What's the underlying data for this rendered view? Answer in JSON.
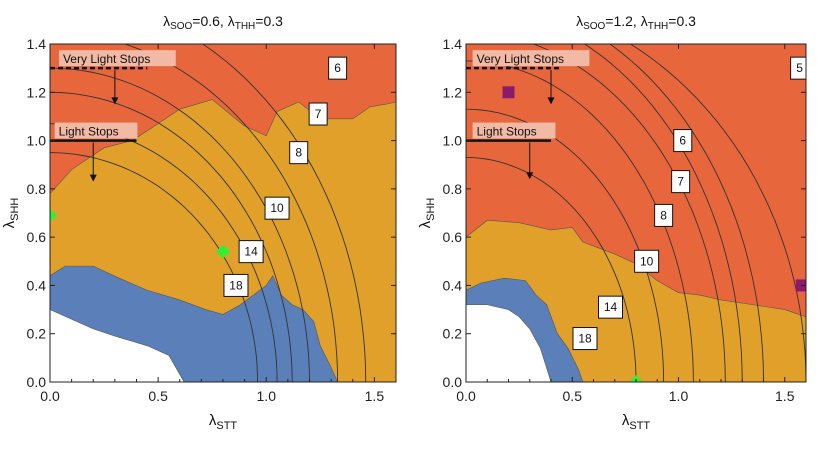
{
  "colors": {
    "red_region": "#e8663c",
    "orange_region": "#e0a02a",
    "blue_region": "#5b7fb8",
    "white_region": "#ffffff",
    "contour": "#333333",
    "label_bg": "#f2b9a4",
    "green_marker": "#33ee33",
    "purple_marker": "#8b1a6b"
  },
  "chart_data": [
    {
      "type": "contour",
      "title": {
        "lambda": "λ",
        "sub1": "SOO",
        "eq1": "=0.6, ",
        "lambda2": "λ",
        "sub2": "THH",
        "eq2": "=0.3"
      },
      "xlabel": {
        "main": "λ",
        "sub": "STT"
      },
      "ylabel": {
        "main": "λ",
        "sub": "SHH"
      },
      "xlim": [
        0,
        1.6
      ],
      "ylim": [
        0,
        1.4
      ],
      "xticks": [
        "0.0",
        "0.5",
        "1.0",
        "1.5"
      ],
      "yticks": [
        "0.0",
        "0.2",
        "0.4",
        "0.6",
        "0.8",
        "1.0",
        "1.2",
        "1.4"
      ],
      "regions": {
        "red_boundary": [
          [
            0,
            0.78
          ],
          [
            0.1,
            0.88
          ],
          [
            0.25,
            0.97
          ],
          [
            0.38,
            1.0
          ],
          [
            0.5,
            1.07
          ],
          [
            0.6,
            1.13
          ],
          [
            0.75,
            1.17
          ],
          [
            0.9,
            1.06
          ],
          [
            1.0,
            1.02
          ],
          [
            1.05,
            1.12
          ],
          [
            1.15,
            1.16
          ],
          [
            1.25,
            1.09
          ],
          [
            1.4,
            1.09
          ],
          [
            1.48,
            1.14
          ],
          [
            1.55,
            1.15
          ],
          [
            1.6,
            1.16
          ]
        ],
        "blue_boundary": [
          [
            0,
            0.44
          ],
          [
            0.07,
            0.48
          ],
          [
            0.2,
            0.48
          ],
          [
            0.32,
            0.43
          ],
          [
            0.45,
            0.38
          ],
          [
            0.6,
            0.34
          ],
          [
            0.72,
            0.3
          ],
          [
            0.8,
            0.28
          ],
          [
            0.88,
            0.32
          ],
          [
            0.94,
            0.36
          ],
          [
            1.0,
            0.4
          ],
          [
            1.03,
            0.44
          ],
          [
            1.07,
            0.36
          ],
          [
            1.12,
            0.32
          ],
          [
            1.17,
            0.3
          ],
          [
            1.22,
            0.25
          ],
          [
            1.25,
            0.15
          ],
          [
            1.3,
            0.06
          ],
          [
            1.33,
            0
          ]
        ],
        "white_boundary": [
          [
            0,
            0.3
          ],
          [
            0.1,
            0.26
          ],
          [
            0.2,
            0.22
          ],
          [
            0.3,
            0.19
          ],
          [
            0.45,
            0.15
          ],
          [
            0.55,
            0.11
          ],
          [
            0.62,
            0
          ]
        ]
      },
      "contour_lines": [
        {
          "level": "6",
          "x0": 1.46,
          "y0": 1.6,
          "label_at": [
            1.33,
            1.3
          ]
        },
        {
          "level": "7",
          "x0": 1.33,
          "y0": 1.45,
          "label_at": [
            1.24,
            1.11
          ]
        },
        {
          "level": "8",
          "x0": 1.2,
          "y0": 1.3,
          "label_at": [
            1.15,
            0.95
          ]
        },
        {
          "level": "10",
          "x0": 1.12,
          "y0": 1.2,
          "label_at": [
            1.05,
            0.72
          ]
        },
        {
          "level": "14",
          "x0": 1.05,
          "y0": 1.07,
          "label_at": [
            0.93,
            0.54
          ]
        },
        {
          "level": "18",
          "x0": 0.96,
          "y0": 0.95,
          "label_at": [
            0.86,
            0.4
          ]
        }
      ],
      "annotations": [
        {
          "text": "Very Light Stops",
          "y": 1.3,
          "style": "dashed",
          "arrow_x": 0.3,
          "arrow_to": 1.15,
          "label_x": 0.06
        },
        {
          "text": "Light Stops",
          "y": 1.0,
          "style": "solid",
          "arrow_x": 0.2,
          "arrow_to": 0.83,
          "label_x": 0.04
        }
      ],
      "markers": [
        {
          "shape": "diamond",
          "x": 0.0,
          "y": 0.69,
          "color": "green"
        },
        {
          "shape": "diamond",
          "x": 0.8,
          "y": 0.54,
          "color": "green"
        }
      ]
    },
    {
      "type": "contour",
      "title": {
        "lambda": "λ",
        "sub1": "SOO",
        "eq1": "=1.2, ",
        "lambda2": "λ",
        "sub2": "THH",
        "eq2": "=0.3"
      },
      "xlabel": {
        "main": "λ",
        "sub": "STT"
      },
      "ylabel": {
        "main": "λ",
        "sub": "SHH"
      },
      "xlim": [
        0,
        1.6
      ],
      "ylim": [
        0,
        1.4
      ],
      "xticks": [
        "0.0",
        "0.5",
        "1.0",
        "1.5"
      ],
      "yticks": [
        "0.0",
        "0.2",
        "0.4",
        "0.6",
        "0.8",
        "1.0",
        "1.2",
        "1.4"
      ],
      "regions": {
        "red_boundary": [
          [
            0,
            0.6
          ],
          [
            0.1,
            0.67
          ],
          [
            0.25,
            0.66
          ],
          [
            0.4,
            0.63
          ],
          [
            0.5,
            0.64
          ],
          [
            0.55,
            0.58
          ],
          [
            0.7,
            0.53
          ],
          [
            0.8,
            0.49
          ],
          [
            0.9,
            0.42
          ],
          [
            1.0,
            0.37
          ],
          [
            1.1,
            0.36
          ],
          [
            1.2,
            0.34
          ],
          [
            1.35,
            0.32
          ],
          [
            1.5,
            0.3
          ],
          [
            1.6,
            0.27
          ]
        ],
        "blue_boundary": [
          [
            0,
            0.38
          ],
          [
            0.07,
            0.41
          ],
          [
            0.18,
            0.43
          ],
          [
            0.28,
            0.42
          ],
          [
            0.33,
            0.36
          ],
          [
            0.38,
            0.32
          ],
          [
            0.43,
            0.2
          ],
          [
            0.48,
            0.14
          ],
          [
            0.53,
            0.05
          ],
          [
            0.55,
            0
          ]
        ],
        "white_boundary": [
          [
            0,
            0.32
          ],
          [
            0.1,
            0.32
          ],
          [
            0.2,
            0.3
          ],
          [
            0.25,
            0.27
          ],
          [
            0.3,
            0.22
          ],
          [
            0.35,
            0.14
          ],
          [
            0.4,
            0
          ]
        ]
      },
      "contour_lines": [
        {
          "level": "5",
          "x0": 1.6,
          "y0": 1.6,
          "label_at": [
            1.57,
            1.3
          ]
        },
        {
          "level": "6",
          "x0": 1.4,
          "y0": 1.6,
          "label_at": [
            1.02,
            1.0
          ]
        },
        {
          "level": "7",
          "x0": 1.3,
          "y0": 1.55,
          "label_at": [
            1.01,
            0.83
          ]
        },
        {
          "level": "8",
          "x0": 1.22,
          "y0": 1.45,
          "label_at": [
            0.93,
            0.69
          ]
        },
        {
          "level": "10",
          "x0": 1.07,
          "y0": 1.33,
          "label_at": [
            0.85,
            0.5
          ]
        },
        {
          "level": "14",
          "x0": 0.93,
          "y0": 1.13,
          "label_at": [
            0.68,
            0.31
          ]
        },
        {
          "level": "18",
          "x0": 0.8,
          "y0": 0.93,
          "label_at": [
            0.56,
            0.18
          ]
        }
      ],
      "annotations": [
        {
          "text": "Very Light Stops",
          "y": 1.3,
          "style": "dashed",
          "arrow_x": 0.4,
          "arrow_to": 1.15,
          "label_x": 0.05
        },
        {
          "text": "Light Stops",
          "y": 1.0,
          "style": "solid",
          "arrow_x": 0.3,
          "arrow_to": 0.84,
          "label_x": 0.05
        }
      ],
      "markers": [
        {
          "shape": "diamond",
          "x": 0.8,
          "y": 0.0,
          "color": "green"
        },
        {
          "shape": "square",
          "x": 0.2,
          "y": 1.2,
          "color": "purple"
        },
        {
          "shape": "square",
          "x": 1.58,
          "y": 0.4,
          "color": "purple"
        }
      ]
    }
  ]
}
